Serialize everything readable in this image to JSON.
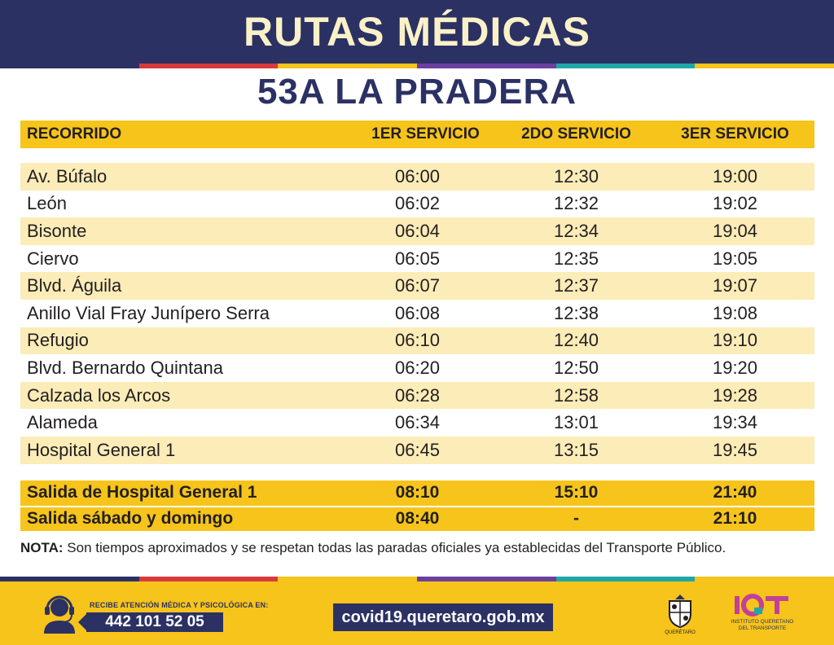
{
  "header": {
    "title": "RUTAS MÉDICAS"
  },
  "route": {
    "title": "53A LA PRADERA"
  },
  "colors": {
    "navy": "#2b3163",
    "yellow": "#f6c41b",
    "light_yellow": "#fcecb8",
    "stripe": [
      "#2b3163",
      "#d63a3a",
      "#f6c41b",
      "#6a3fa0",
      "#1fa7a8",
      "#f6c41b"
    ]
  },
  "table": {
    "headers": [
      "RECORRIDO",
      "1ER SERVICIO",
      "2DO SERVICIO",
      "3ER SERVICIO"
    ],
    "rows": [
      {
        "stop": "Av. Búfalo",
        "t1": "06:00",
        "t2": "12:30",
        "t3": "19:00"
      },
      {
        "stop": "León",
        "t1": "06:02",
        "t2": "12:32",
        "t3": "19:02"
      },
      {
        "stop": "Bisonte",
        "t1": "06:04",
        "t2": "12:34",
        "t3": "19:04"
      },
      {
        "stop": "Ciervo",
        "t1": "06:05",
        "t2": "12:35",
        "t3": "19:05"
      },
      {
        "stop": "Blvd. Águila",
        "t1": "06:07",
        "t2": "12:37",
        "t3": "19:07"
      },
      {
        "stop": "Anillo Vial Fray Junípero Serra",
        "t1": "06:08",
        "t2": "12:38",
        "t3": "19:08"
      },
      {
        "stop": "Refugio",
        "t1": "06:10",
        "t2": "12:40",
        "t3": "19:10"
      },
      {
        "stop": "Blvd. Bernardo Quintana",
        "t1": "06:20",
        "t2": "12:50",
        "t3": "19:20"
      },
      {
        "stop": "Calzada los Arcos",
        "t1": "06:28",
        "t2": "12:58",
        "t3": "19:28"
      },
      {
        "stop": "Alameda",
        "t1": "06:34",
        "t2": "13:01",
        "t3": "19:34"
      },
      {
        "stop": "Hospital General 1",
        "t1": "06:45",
        "t2": "13:15",
        "t3": "19:45"
      }
    ],
    "departures": [
      {
        "label": "Salida de Hospital General 1",
        "t1": "08:10",
        "t2": "15:10",
        "t3": "21:40"
      },
      {
        "label": "Salida sábado y domingo",
        "t1": "08:40",
        "t2": "-",
        "t3": "21:10"
      }
    ]
  },
  "note": {
    "label": "NOTA:",
    "text": " Son tiempos aproximados y se respetan todas las paradas oficiales ya establecidas del Transporte Público."
  },
  "footer": {
    "attention_label": "RECIBE ATENCIÓN MÉDICA Y PSICOLÓGICA EN:",
    "phone": "442 101 52 05",
    "url": "covid19.queretaro.gob.mx",
    "gov_label": "QUERÉTARO",
    "iqt_name": "INSTITUTO QUERETANO",
    "iqt_sub": "DEL TRANSPORTE",
    "icons": [
      "headset-icon",
      "queretaro-shield-icon",
      "iqt-logo-icon"
    ]
  }
}
